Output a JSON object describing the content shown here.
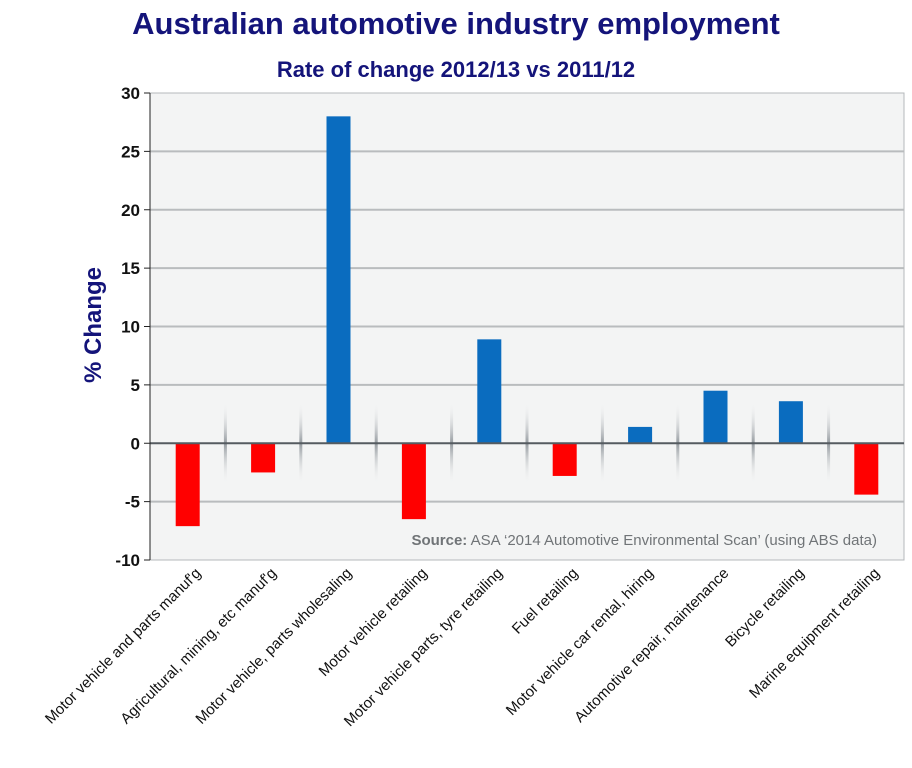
{
  "chart_data": {
    "type": "bar",
    "title": "Australian automotive industry employment",
    "subtitle": "Rate of change 2012/13 vs 2011/12",
    "ylabel": "% Change",
    "xlabel": "",
    "ylim": [
      -10,
      30
    ],
    "yticks": [
      30,
      25,
      20,
      15,
      10,
      5,
      0,
      -5,
      -10
    ],
    "categories": [
      "Motor vehicle and parts manuf'g",
      "Agricultural, mining, etc manuf'g",
      "Motor vehicle, parts wholesaling",
      "Motor vehicle retailing",
      "Motor vehicle parts, tyre retailing",
      "Fuel retailing",
      "Motor vehicle car rental, hiring",
      "Automotive repair, maintenance",
      "Bicycle retailing",
      "Marine equipment retailing"
    ],
    "values": [
      -7.1,
      -2.5,
      28.0,
      -6.5,
      8.9,
      -2.8,
      1.4,
      4.5,
      3.6,
      -4.4
    ],
    "grid": true,
    "colors": {
      "positive": "#0a6cbf",
      "negative": "#ff0000"
    },
    "source_label": "Source:",
    "source_text": " ASA ‘2014 Automotive Environmental Scan’ (using ABS data)"
  }
}
